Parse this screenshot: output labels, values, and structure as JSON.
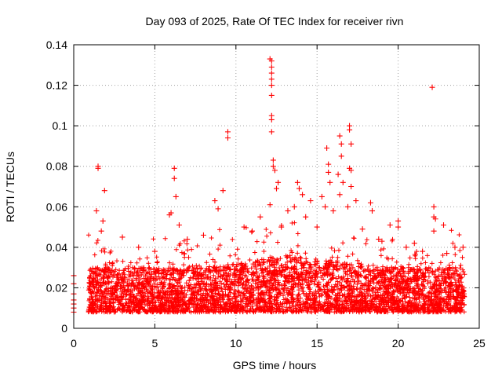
{
  "chart_data": {
    "type": "scatter",
    "title": "Day 093 of 2025, Rate Of TEC Index for receiver rivn",
    "xlabel": "GPS time / hours",
    "ylabel": "ROTI / TECUs",
    "xlim": [
      0,
      25
    ],
    "ylim": [
      0,
      0.14
    ],
    "xticks": [
      0,
      5,
      10,
      15,
      20,
      25
    ],
    "xtick_labels": [
      "0",
      "5",
      "10",
      "15",
      "20",
      "25"
    ],
    "yticks": [
      0,
      0.02,
      0.04,
      0.06,
      0.08,
      0.1,
      0.12,
      0.14
    ],
    "ytick_labels": [
      "0",
      "0.02",
      "0.04",
      "0.06",
      "0.08",
      "0.1",
      "0.12",
      "0.14"
    ],
    "grid": true,
    "marker": "plus",
    "marker_color": "#ff0000",
    "band": {
      "x_range": [
        0.9,
        24.1
      ],
      "typical_range": [
        0.008,
        0.03
      ],
      "note": "dense cloud of ROTI samples between roughly 0.008 and 0.03 TECU/s across the day, with an isolated cluster of points near 0.008-0.027 at 0-0.1 h"
    },
    "series": [
      {
        "name": "ROTI",
        "points": [
          [
            0.0,
            0.026
          ],
          [
            0.0,
            0.022
          ],
          [
            0.0,
            0.017
          ],
          [
            0.0,
            0.014
          ],
          [
            0.0,
            0.012
          ],
          [
            0.0,
            0.01
          ],
          [
            0.0,
            0.008
          ],
          [
            1.5,
            0.08
          ],
          [
            1.5,
            0.079
          ],
          [
            1.9,
            0.068
          ],
          [
            1.4,
            0.058
          ],
          [
            1.8,
            0.053
          ],
          [
            1.7,
            0.048
          ],
          [
            6.2,
            0.079
          ],
          [
            6.2,
            0.074
          ],
          [
            6.3,
            0.065
          ],
          [
            6.0,
            0.057
          ],
          [
            5.9,
            0.056
          ],
          [
            6.5,
            0.051
          ],
          [
            9.5,
            0.097
          ],
          [
            9.5,
            0.094
          ],
          [
            9.2,
            0.068
          ],
          [
            8.7,
            0.063
          ],
          [
            8.9,
            0.059
          ],
          [
            12.1,
            0.133
          ],
          [
            12.2,
            0.132
          ],
          [
            12.2,
            0.129
          ],
          [
            12.2,
            0.126
          ],
          [
            12.2,
            0.123
          ],
          [
            12.2,
            0.12
          ],
          [
            12.2,
            0.115
          ],
          [
            12.2,
            0.105
          ],
          [
            12.2,
            0.103
          ],
          [
            12.2,
            0.097
          ],
          [
            12.3,
            0.083
          ],
          [
            12.3,
            0.08
          ],
          [
            12.4,
            0.078
          ],
          [
            12.6,
            0.072
          ],
          [
            12.5,
            0.069
          ],
          [
            12.1,
            0.061
          ],
          [
            13.8,
            0.072
          ],
          [
            13.9,
            0.069
          ],
          [
            14.1,
            0.066
          ],
          [
            14.6,
            0.063
          ],
          [
            13.6,
            0.06
          ],
          [
            15.6,
            0.089
          ],
          [
            15.7,
            0.081
          ],
          [
            15.7,
            0.077
          ],
          [
            15.8,
            0.072
          ],
          [
            15.3,
            0.065
          ],
          [
            15.5,
            0.06
          ],
          [
            16.4,
            0.095
          ],
          [
            16.5,
            0.091
          ],
          [
            16.5,
            0.085
          ],
          [
            16.3,
            0.076
          ],
          [
            16.6,
            0.072
          ],
          [
            16.4,
            0.066
          ],
          [
            17.0,
            0.1
          ],
          [
            17.0,
            0.098
          ],
          [
            17.1,
            0.091
          ],
          [
            17.0,
            0.079
          ],
          [
            17.1,
            0.078
          ],
          [
            17.1,
            0.07
          ],
          [
            17.4,
            0.063
          ],
          [
            16.9,
            0.06
          ],
          [
            18.3,
            0.062
          ],
          [
            18.4,
            0.058
          ],
          [
            19.5,
            0.051
          ],
          [
            20.0,
            0.053
          ],
          [
            20.0,
            0.05
          ],
          [
            22.1,
            0.119
          ],
          [
            22.2,
            0.06
          ],
          [
            22.2,
            0.055
          ],
          [
            22.3,
            0.054
          ],
          [
            22.2,
            0.048
          ],
          [
            22.8,
            0.051
          ],
          [
            23.5,
            0.04
          ],
          [
            3.0,
            0.045
          ],
          [
            4.0,
            0.04
          ],
          [
            5.0,
            0.038
          ],
          [
            7.0,
            0.044
          ],
          [
            8.0,
            0.046
          ],
          [
            10.5,
            0.05
          ],
          [
            11.0,
            0.048
          ],
          [
            11.5,
            0.055
          ],
          [
            12.8,
            0.05
          ],
          [
            13.2,
            0.058
          ],
          [
            14.3,
            0.055
          ],
          [
            15.0,
            0.05
          ],
          [
            16.0,
            0.058
          ],
          [
            17.8,
            0.049
          ],
          [
            18.8,
            0.044
          ],
          [
            19.0,
            0.043
          ],
          [
            20.5,
            0.04
          ],
          [
            21.0,
            0.042
          ],
          [
            21.5,
            0.038
          ],
          [
            23.0,
            0.037
          ],
          [
            24.0,
            0.04
          ]
        ]
      }
    ]
  }
}
